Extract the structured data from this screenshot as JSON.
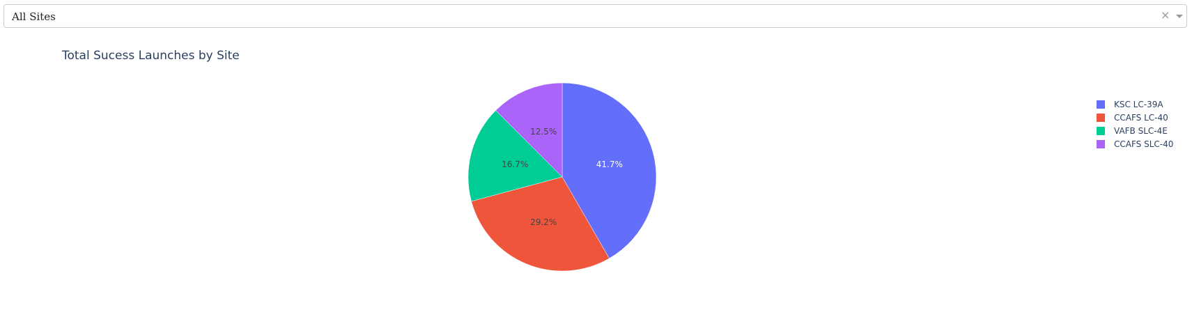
{
  "site_dropdown": {
    "selected": "All Sites",
    "clear_icon": "×"
  },
  "chart_data": {
    "type": "pie",
    "title": "Total Sucess Launches by Site",
    "legend_placement": "top-right",
    "labels": [
      "KSC LC-39A",
      "CCAFS LC-40",
      "VAFB SLC-4E",
      "CCAFS SLC-40"
    ],
    "values": [
      41.7,
      29.2,
      16.7,
      12.5
    ],
    "percent_labels": [
      "41.7%",
      "29.2%",
      "16.7%",
      "12.5%"
    ],
    "colors": [
      "#636efa",
      "#EF553B",
      "#00cc96",
      "#ab63fa"
    ],
    "label_colors": [
      "#ffffff",
      "#444444",
      "#444444",
      "#444444"
    ],
    "direction": "clockwise",
    "start_angle_deg": 0
  }
}
